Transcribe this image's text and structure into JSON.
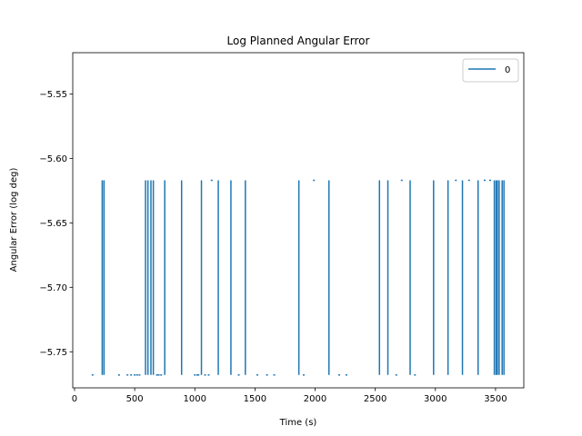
{
  "chart_data": {
    "type": "line",
    "title": "Log Planned Angular Error",
    "xlabel": "Time (s)",
    "ylabel": "Angular Error (log deg)",
    "xlim": [
      -15,
      3735
    ],
    "ylim": [
      -5.778,
      -5.518
    ],
    "xticks": [
      0,
      500,
      1000,
      1500,
      2000,
      2500,
      3000,
      3500
    ],
    "xtick_labels": [
      "0",
      "500",
      "1000",
      "1500",
      "2000",
      "2500",
      "3000",
      "3500"
    ],
    "yticks": [
      -5.55,
      -5.6,
      -5.65,
      -5.7,
      -5.75
    ],
    "ytick_labels": [
      "−5.55",
      "−5.60",
      "−5.65",
      "−5.70",
      "−5.75"
    ],
    "grid": false,
    "legend_position": "top-right",
    "series": [
      {
        "name": "0",
        "color": "#1f77b4",
        "low_value": -5.768,
        "high_value": -5.617,
        "transitions_x": [
          230,
          245,
          590,
          610,
          635,
          655,
          750,
          890,
          1055,
          1195,
          1300,
          1420,
          1865,
          2115,
          2535,
          2605,
          2790,
          2985,
          3105,
          3225,
          3355,
          3490,
          3505,
          3515,
          3530,
          3555,
          3570
        ],
        "low_dots_x": [
          150,
          370,
          440,
          470,
          500,
          520,
          540,
          685,
          700,
          720,
          1000,
          1020,
          1030,
          1085,
          1115,
          1365,
          1520,
          1600,
          1660,
          1905,
          2200,
          2260,
          2675,
          2830
        ],
        "high_dots_x": [
          1140,
          1990,
          2720,
          3170,
          3280,
          3410,
          3455
        ]
      }
    ]
  }
}
